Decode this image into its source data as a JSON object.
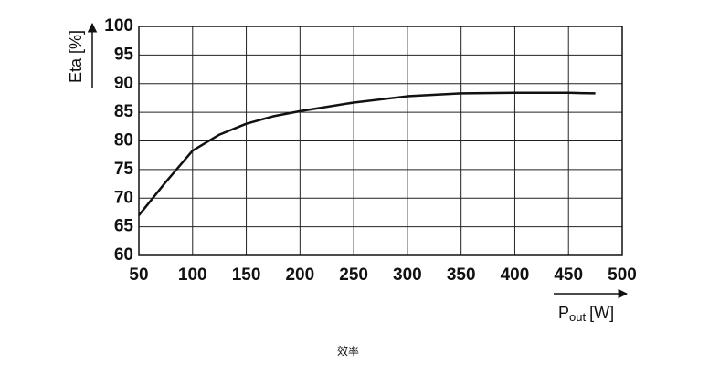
{
  "chart_data": {
    "type": "line",
    "y_label": "Eta [%]",
    "x_label": {
      "main": "P",
      "sub": "out",
      "unit": "[W]"
    },
    "caption": "效率",
    "x": [
      50,
      75,
      100,
      125,
      150,
      175,
      200,
      250,
      300,
      350,
      400,
      450,
      475
    ],
    "series": [
      {
        "color": "#111111",
        "values": [
          67,
          72.8,
          78.3,
          81.1,
          83.0,
          84.3,
          85.2,
          86.7,
          87.8,
          88.3,
          88.4,
          88.4,
          88.3
        ]
      }
    ],
    "xlim": [
      50,
      500
    ],
    "xticks": [
      50,
      100,
      150,
      200,
      250,
      300,
      350,
      400,
      450,
      500
    ],
    "ylim": [
      60,
      100
    ],
    "yticks": [
      60,
      65,
      70,
      75,
      80,
      85,
      90,
      95,
      100
    ],
    "grid": true
  }
}
